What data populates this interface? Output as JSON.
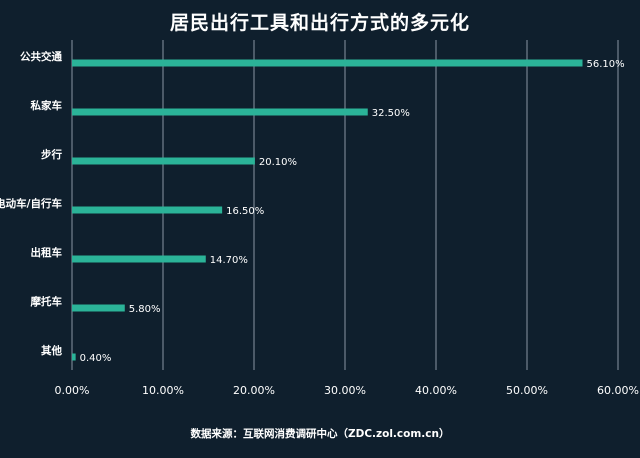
{
  "chart_data": {
    "type": "bar",
    "orientation": "horizontal",
    "title": "居民出行工具和出行方式的多元化",
    "categories": [
      "公共交通",
      "私家车",
      "步行",
      "电动车/自行车",
      "出租车",
      "摩托车",
      "其他"
    ],
    "values": [
      56.1,
      32.5,
      20.1,
      16.5,
      14.7,
      5.8,
      0.4
    ],
    "value_labels": [
      "56.10%",
      "32.50%",
      "20.10%",
      "16.50%",
      "14.70%",
      "5.80%",
      "0.40%"
    ],
    "xlim": [
      0,
      60
    ],
    "x_ticks": [
      0,
      10,
      20,
      30,
      40,
      50,
      60
    ],
    "x_tick_labels": [
      "0.00%",
      "10.00%",
      "20.00%",
      "30.00%",
      "40.00%",
      "50.00%",
      "60.00%"
    ],
    "grid": true,
    "xlabel": "",
    "ylabel": "",
    "source": "数据来源：互联网消费调研中心（ZDC.zol.com.cn）"
  },
  "colors": {
    "background": "#0f1f2d",
    "bar": "#2bb398",
    "grid": "#8a96a3",
    "text": "#ffffff"
  }
}
